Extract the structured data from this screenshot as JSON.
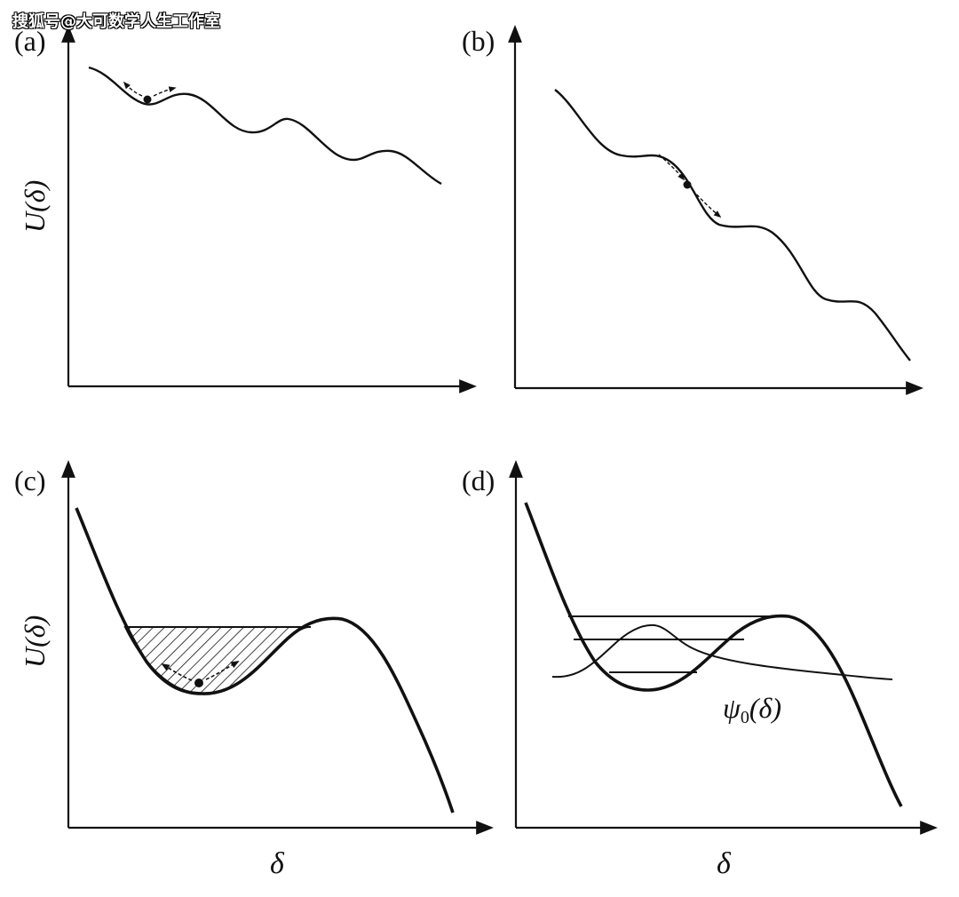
{
  "watermark": "搜狐号@大可数学人生工作室",
  "panels": {
    "a": {
      "label": "(a)",
      "ylabel": "U(δ)"
    },
    "b": {
      "label": "(b)"
    },
    "c": {
      "label": "(c)",
      "ylabel": "U(δ)",
      "xlabel": "δ"
    },
    "d": {
      "label": "(d)",
      "xlabel": "δ",
      "curve_label_main": "ψ",
      "curve_label_sub": "0",
      "curve_label_arg": "(δ)"
    }
  },
  "colors": {
    "ink": "#111111",
    "background": "#ffffff"
  }
}
